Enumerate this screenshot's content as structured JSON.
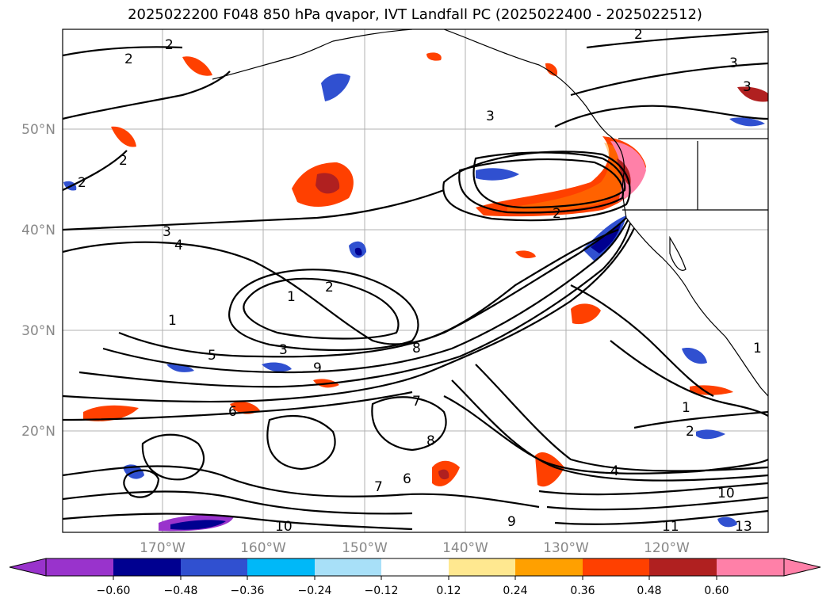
{
  "title": "2025022200 F048 850 hPa qvapor, IVT Landfall PC (2025022400 - 2025022512)",
  "lat_labels": [
    "50°N",
    "40°N",
    "30°N",
    "20°N"
  ],
  "lon_labels": [
    "170°W",
    "160°W",
    "150°W",
    "140°W",
    "130°W",
    "120°W"
  ],
  "colorbar": {
    "ticks": [
      "−0.60",
      "−0.48",
      "−0.36",
      "−0.24",
      "−0.12",
      "0.12",
      "0.24",
      "0.36",
      "0.48",
      "0.60"
    ],
    "under_color": "#9933cc",
    "colors": [
      "#9933cc",
      "#000090",
      "#3050d0",
      "#00b8f8",
      "#a8e0f8",
      "#ffffff",
      "#ffe890",
      "#ffa000",
      "#ff4000",
      "#b02020",
      "#ff80a8"
    ],
    "over_color": "#ff80a8"
  },
  "contour_labels": [
    "2",
    "2",
    "3",
    "3",
    "2",
    "2",
    "2",
    "3",
    "2",
    "3",
    "4",
    "1",
    "2",
    "3",
    "5",
    "6",
    "7",
    "8",
    "9",
    "1",
    "2",
    "4",
    "1",
    "1",
    "6",
    "7",
    "8",
    "9",
    "10",
    "11",
    "13",
    "10"
  ]
}
